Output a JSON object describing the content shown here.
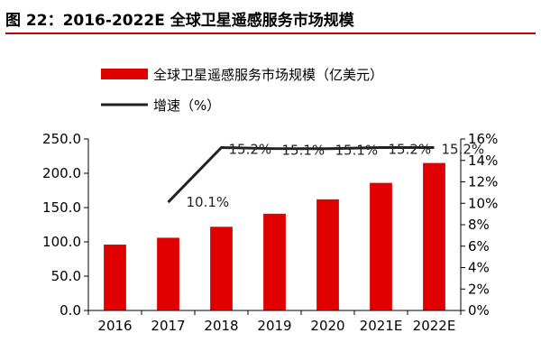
{
  "figure_title": "图 22：2016-2022E 全球卫星遥感服务市场规模",
  "chart_data": {
    "type": "bar",
    "categories": [
      "2016",
      "2017",
      "2018",
      "2019",
      "2020",
      "2021E",
      "2022E"
    ],
    "series": [
      {
        "name": "全球卫星遥感服务市场规模（亿美元）",
        "type": "bar",
        "axis": "left",
        "color": "#e00000",
        "values": [
          96,
          106,
          122,
          141,
          162,
          186,
          215
        ]
      },
      {
        "name": "增速（%）",
        "type": "line",
        "axis": "right",
        "color": "#222222",
        "values": [
          null,
          10.1,
          15.2,
          15.1,
          15.1,
          15.2,
          15.2
        ],
        "labels": [
          "",
          "10.1%",
          "15.2%",
          "15.1%",
          "15.1%",
          "15.2%",
          "15.2%"
        ]
      }
    ],
    "y_left": {
      "min": 0,
      "max": 250,
      "ticks": [
        0,
        50,
        100,
        150,
        200,
        250
      ],
      "tick_labels": [
        "0.0",
        "50.0",
        "100.0",
        "150.0",
        "200.0",
        "250.0"
      ]
    },
    "y_right": {
      "min": 0,
      "max": 16,
      "ticks": [
        0,
        2,
        4,
        6,
        8,
        10,
        12,
        14,
        16
      ],
      "tick_labels": [
        "0%",
        "2%",
        "4%",
        "6%",
        "8%",
        "10%",
        "12%",
        "14%",
        "16%"
      ]
    },
    "legend_position": "top-left",
    "grid": false
  }
}
